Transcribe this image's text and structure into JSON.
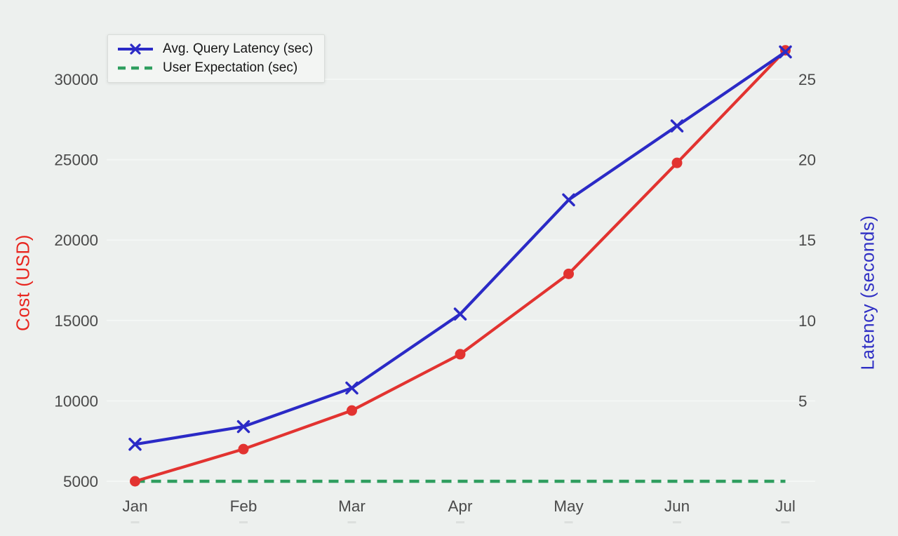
{
  "chart_data": {
    "type": "line",
    "title": "",
    "categories": [
      "Jan",
      "Feb",
      "Mar",
      "Apr",
      "May",
      "Jun",
      "Jul"
    ],
    "series": [
      {
        "name": "Cost (USD)",
        "axis": "cost",
        "color": "#e23330",
        "marker": "circle",
        "line": "solid",
        "values": [
          5000,
          7000,
          9400,
          12900,
          17900,
          24800,
          31800
        ]
      },
      {
        "name": "Avg. Query Latency (sec)",
        "axis": "latency",
        "color": "#2b2ac6",
        "marker": "x",
        "line": "solid",
        "values": [
          2.3,
          3.4,
          5.8,
          10.4,
          17.5,
          22.1,
          26.7
        ]
      },
      {
        "name": "User Expectation (sec)",
        "axis": "latency",
        "color": "#2f9e5f",
        "marker": "none",
        "line": "dashed",
        "values": [
          0,
          0,
          0,
          0,
          0,
          0,
          0
        ]
      }
    ],
    "left_axis": {
      "label": "Cost (USD)",
      "ticks": [
        5000,
        10000,
        15000,
        20000,
        25000,
        30000
      ],
      "min": 5000,
      "max": 32500
    },
    "right_axis": {
      "label": "Latency (seconds)",
      "ticks": [
        5,
        10,
        15,
        20,
        25
      ],
      "min": 0,
      "max": 27.5
    },
    "xlabel": "",
    "ylabel_left": "Cost (USD)",
    "ylabel_right": "Latency (seconds)",
    "grid": "horizontal-faint",
    "legend_position": "top-left"
  },
  "legend": {
    "items": [
      {
        "label": "Avg. Query Latency (sec)",
        "color": "#2b2ac6",
        "style": "solid-with-x-marker"
      },
      {
        "label": "User Expectation (sec)",
        "color": "#2f9e5f",
        "style": "dashed"
      }
    ]
  },
  "colors": {
    "background": "#edf0ee",
    "grid": "#f8faf9",
    "tick_text": "#4a4a4a",
    "blue": "#2b2ac6",
    "red": "#e23330",
    "green": "#2f9e5f",
    "left_axis_title": "#e8261f",
    "right_axis_title": "#2f2fc4",
    "legend_text": "#161616",
    "legend_bg": "#f3f5f3",
    "legend_border": "#d9ddda"
  }
}
